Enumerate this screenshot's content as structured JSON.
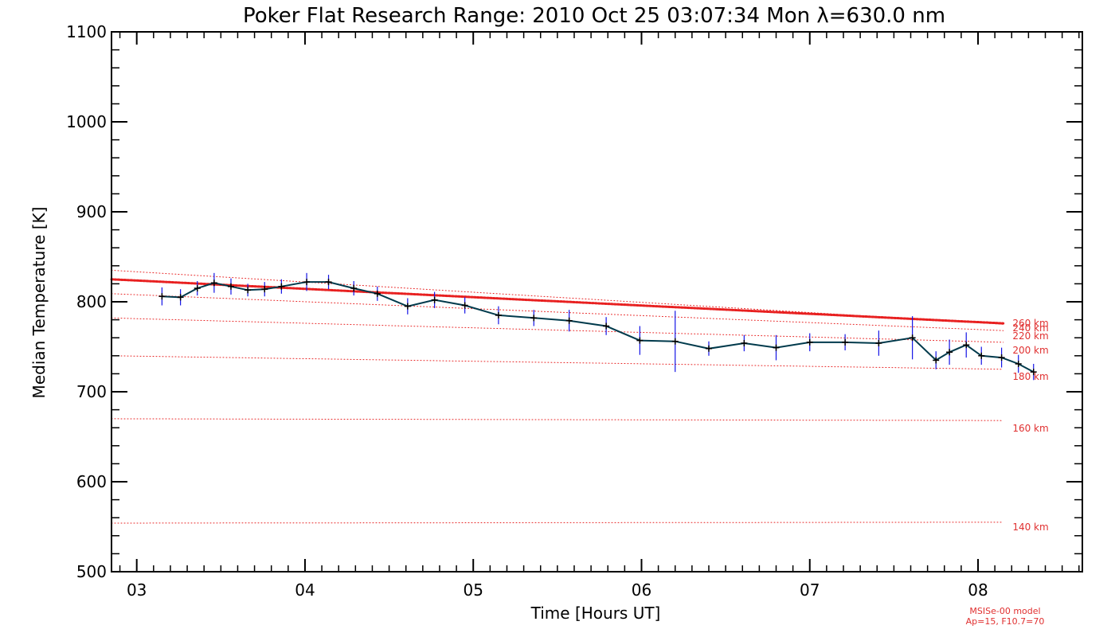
{
  "chart_data": {
    "type": "line",
    "title": "Poker Flat Research Range: 2010 Oct 25 03:07:34 Mon λ=630.0 nm",
    "xlabel": "Time [Hours UT]",
    "ylabel": "Median Temperature [K]",
    "xlim": [
      2.85,
      8.62
    ],
    "ylim": [
      500,
      1100
    ],
    "xticks": [
      3,
      4,
      5,
      6,
      7,
      8
    ],
    "xtick_labels": [
      "03",
      "04",
      "05",
      "06",
      "07",
      "08"
    ],
    "yticks": [
      500,
      600,
      700,
      800,
      900,
      1000,
      1100
    ],
    "ytick_labels": [
      "500",
      "600",
      "700",
      "800",
      "900",
      "1000",
      "1100"
    ],
    "grid": false,
    "series": [
      {
        "name": "median temperature",
        "color": "#003a4c",
        "error_color": "#1414e6",
        "x": [
          3.15,
          3.26,
          3.36,
          3.46,
          3.56,
          3.66,
          3.76,
          3.86,
          4.01,
          4.14,
          4.29,
          4.43,
          4.61,
          4.77,
          4.95,
          5.15,
          5.36,
          5.57,
          5.79,
          5.99,
          6.2,
          6.4,
          6.61,
          6.8,
          7.0,
          7.21,
          7.41,
          7.61,
          7.75,
          7.83,
          7.93,
          8.02,
          8.14,
          8.24,
          8.33
        ],
        "y": [
          806,
          805,
          815,
          821,
          817,
          813,
          814,
          817,
          822,
          822,
          815,
          809,
          795,
          802,
          796,
          785,
          782,
          779,
          773,
          757,
          756,
          748,
          754,
          749,
          755,
          755,
          754,
          760,
          735,
          744,
          752,
          740,
          738,
          731,
          722
        ],
        "err": [
          10,
          9,
          8,
          11,
          9,
          7,
          8,
          8,
          10,
          8,
          8,
          8,
          9,
          9,
          9,
          10,
          9,
          12,
          10,
          16,
          34,
          8,
          9,
          14,
          10,
          9,
          14,
          24,
          10,
          14,
          14,
          10,
          11,
          10,
          9
        ]
      }
    ],
    "model_curves": [
      {
        "label": "260 km",
        "style": "bold",
        "y_start": 825,
        "y_end": 776
      },
      {
        "label": "240 km",
        "style": "dotted",
        "y_start": 835,
        "y_end": 775
      },
      {
        "label": "220 km",
        "style": "dotted",
        "y_start": 809,
        "y_end": 768
      },
      {
        "label": "200 km",
        "style": "dotted",
        "y_start": 782,
        "y_end": 755
      },
      {
        "label": "180 km",
        "style": "dotted",
        "y_start": 740,
        "y_end": 725
      },
      {
        "label": "160 km",
        "style": "dotted",
        "y_start": 670,
        "y_end": 668
      },
      {
        "label": "140 km",
        "style": "dotted",
        "y_start": 554,
        "y_end": 555
      }
    ],
    "model_note": [
      "MSISe-00 model",
      "Ap=15, F10.7=70"
    ]
  }
}
